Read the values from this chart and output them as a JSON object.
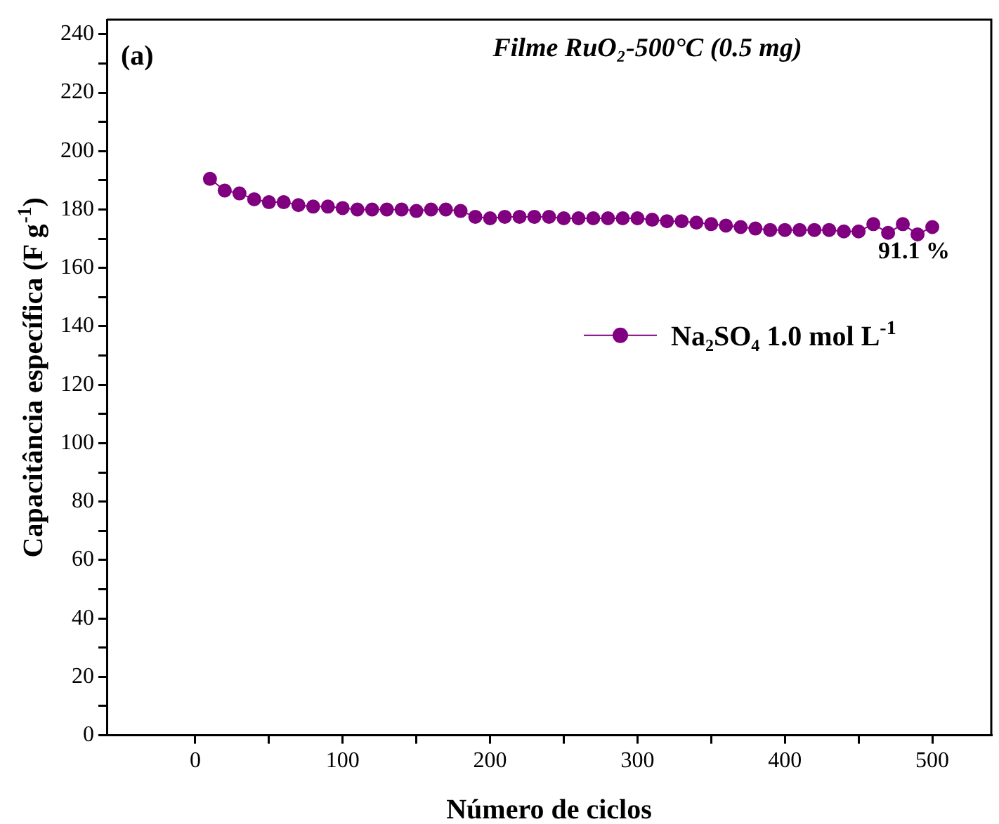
{
  "chart_data": {
    "type": "line",
    "title": "Filme RuO₂-500°C (0.5 mg)",
    "xlabel": "Número de ciclos",
    "ylabel": "Capacitância específica (F g$^{-1}$)",
    "annotations": [
      "(a)",
      "91.1 %"
    ],
    "x": [
      10,
      20,
      30,
      40,
      50,
      60,
      70,
      80,
      90,
      100,
      110,
      120,
      130,
      140,
      150,
      160,
      170,
      180,
      190,
      200,
      210,
      220,
      230,
      240,
      250,
      260,
      270,
      280,
      290,
      300,
      310,
      320,
      330,
      340,
      350,
      360,
      370,
      380,
      390,
      400,
      410,
      420,
      430,
      440,
      450,
      460,
      470,
      480,
      490,
      500
    ],
    "series": [
      {
        "name": "Na₂SO₄ 1.0 mol L$^{-1}$",
        "color": "#800080",
        "values": [
          190.5,
          186.5,
          185.5,
          183.5,
          182.5,
          182.5,
          181.5,
          181,
          181,
          180.5,
          180,
          180,
          180,
          180,
          179.5,
          180,
          180,
          179.5,
          177.5,
          177,
          177.5,
          177.5,
          177.5,
          177.5,
          177,
          177,
          177,
          177,
          177,
          177,
          176.5,
          176,
          176,
          175.5,
          175,
          174.5,
          174,
          173.5,
          173,
          173,
          173,
          173,
          173,
          172.5,
          172.5,
          175,
          172,
          175,
          171.5,
          174
        ]
      }
    ],
    "xlim": [
      -60,
      540
    ],
    "xticks": [
      0,
      {
        "value": 50,
        "label": null
      },
      100,
      {
        "value": 150,
        "label": null
      },
      200,
      {
        "value": 250,
        "label": null
      },
      300,
      {
        "value": 350,
        "label": null
      },
      400,
      {
        "value": 450,
        "label": null
      },
      500
    ],
    "ylim": [
      0,
      245
    ],
    "yticks": [
      0,
      {
        "value": 10,
        "label": null
      },
      20,
      {
        "value": 30,
        "label": null
      },
      40,
      {
        "value": 50,
        "label": null
      },
      60,
      {
        "value": 70,
        "label": null
      },
      80,
      {
        "value": 90,
        "label": null
      },
      100,
      {
        "value": 110,
        "label": null
      },
      120,
      {
        "value": 130,
        "label": null
      },
      140,
      {
        "value": 150,
        "label": null
      },
      160,
      {
        "value": 170,
        "label": null
      },
      180,
      {
        "value": 190,
        "label": null
      },
      200,
      {
        "value": 210,
        "label": null
      },
      220,
      {
        "value": 230,
        "label": null
      },
      240
    ],
    "grid": false,
    "legend": "right",
    "marker": "circle",
    "line_style": "solid"
  }
}
